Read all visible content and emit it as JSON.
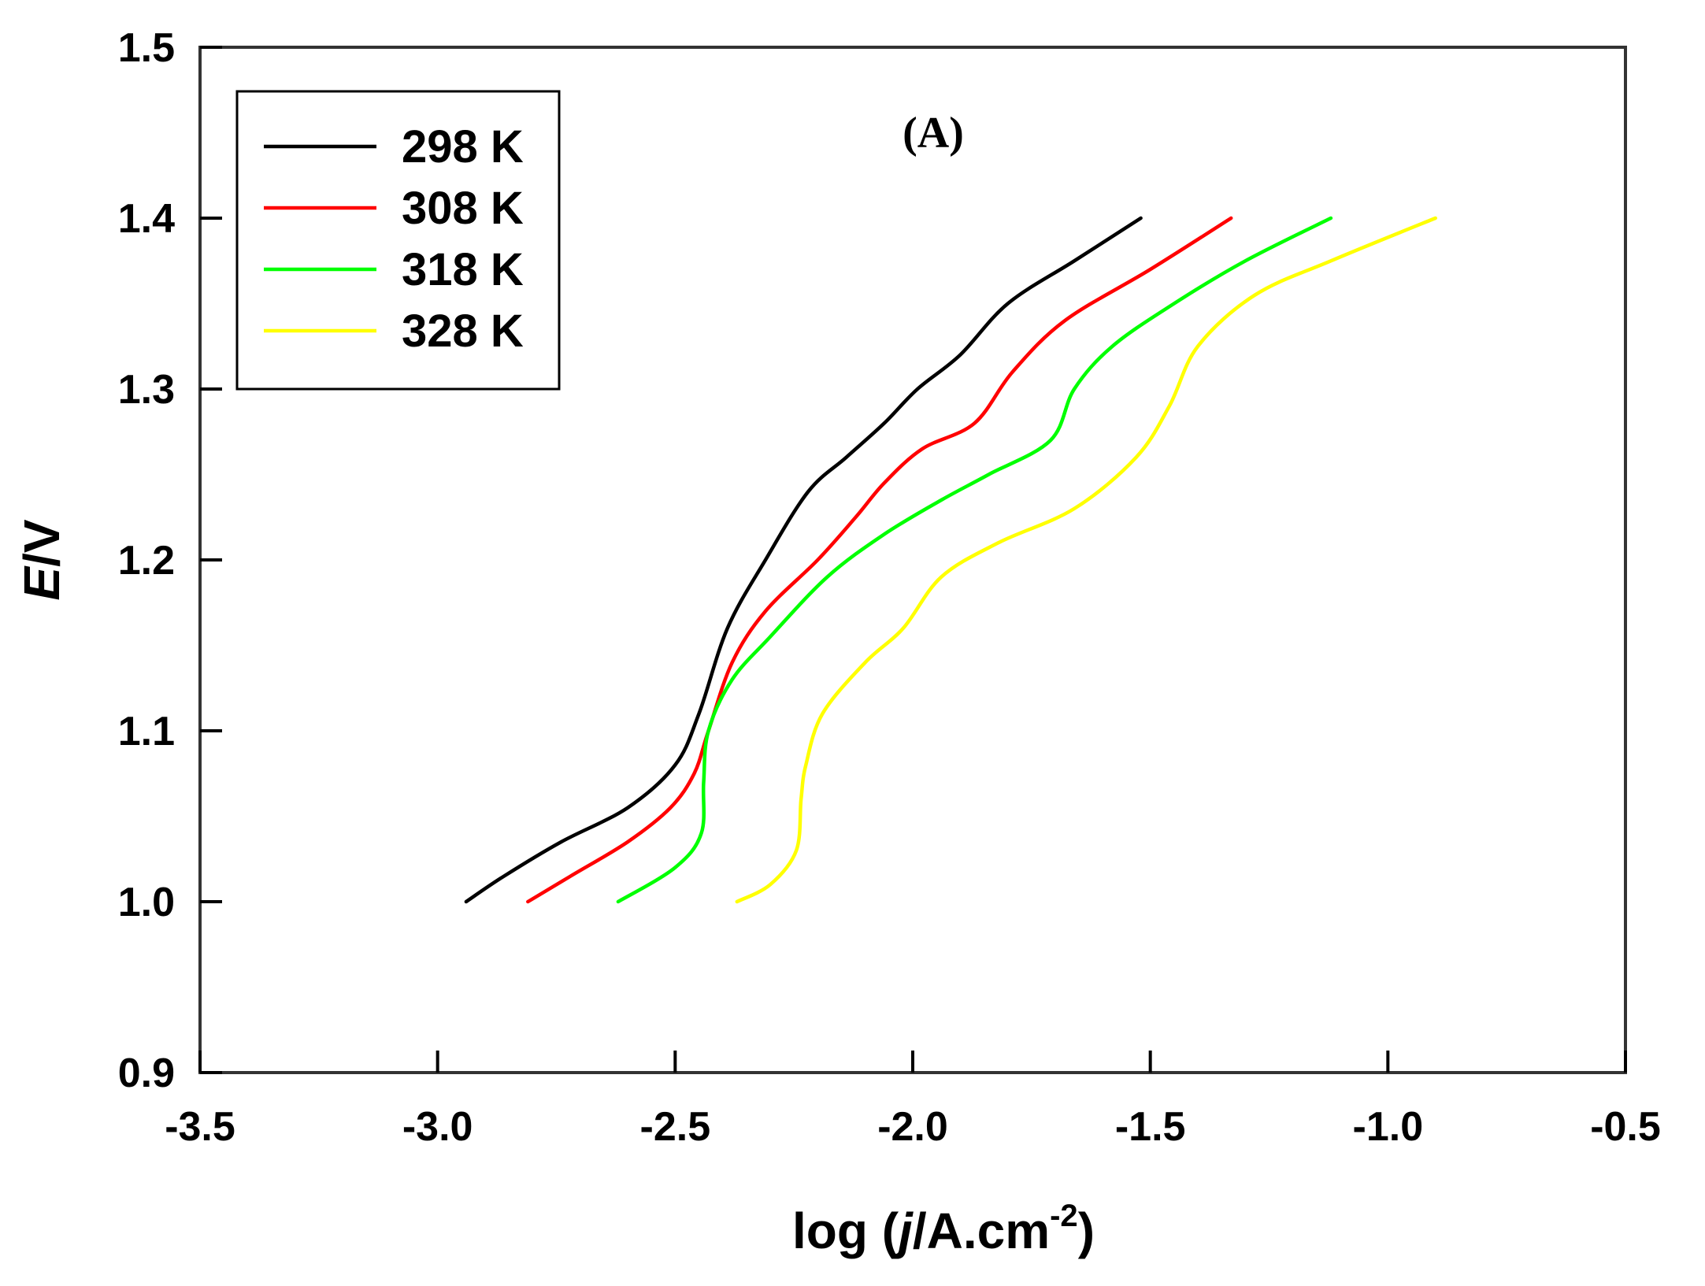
{
  "chart_data": {
    "type": "line",
    "title": "",
    "panel_label": "(A)",
    "xlabel": {
      "main": "log (",
      "italic": "j",
      "unit": "/A.cm",
      "sup": "-2",
      "close": ")"
    },
    "ylabel": {
      "italic": "E",
      "unit": "/V"
    },
    "xlim": [
      -3.5,
      -0.5
    ],
    "ylim": [
      0.9,
      1.5
    ],
    "xticks": [
      -3.5,
      -3.0,
      -2.5,
      -2.0,
      -1.5,
      -1.0,
      -0.5
    ],
    "xtick_labels": [
      "-3.5",
      "-3.0",
      "-2.5",
      "-2.0",
      "-1.5",
      "-1.0",
      "-0.5"
    ],
    "yticks": [
      0.9,
      1.0,
      1.1,
      1.2,
      1.3,
      1.4,
      1.5
    ],
    "ytick_labels": [
      "0.9",
      "1.0",
      "1.1",
      "1.2",
      "1.3",
      "1.4",
      "1.5"
    ],
    "grid": false,
    "legend_position": "top-left",
    "series": [
      {
        "name": "298 K",
        "color": "#000000",
        "points": [
          [
            -2.94,
            1.0
          ],
          [
            -2.86,
            1.015
          ],
          [
            -2.74,
            1.035
          ],
          [
            -2.6,
            1.055
          ],
          [
            -2.5,
            1.08
          ],
          [
            -2.45,
            1.11
          ],
          [
            -2.39,
            1.16
          ],
          [
            -2.31,
            1.2
          ],
          [
            -2.22,
            1.24
          ],
          [
            -2.14,
            1.26
          ],
          [
            -2.06,
            1.28
          ],
          [
            -1.99,
            1.3
          ],
          [
            -1.9,
            1.32
          ],
          [
            -1.8,
            1.35
          ],
          [
            -1.66,
            1.375
          ],
          [
            -1.52,
            1.4
          ]
        ]
      },
      {
        "name": "308 K",
        "color": "#ff0000",
        "points": [
          [
            -2.81,
            1.0
          ],
          [
            -2.72,
            1.015
          ],
          [
            -2.6,
            1.035
          ],
          [
            -2.51,
            1.055
          ],
          [
            -2.46,
            1.075
          ],
          [
            -2.43,
            1.1
          ],
          [
            -2.38,
            1.14
          ],
          [
            -2.31,
            1.17
          ],
          [
            -2.2,
            1.2
          ],
          [
            -2.12,
            1.225
          ],
          [
            -2.06,
            1.245
          ],
          [
            -1.98,
            1.265
          ],
          [
            -1.87,
            1.28
          ],
          [
            -1.79,
            1.31
          ],
          [
            -1.68,
            1.34
          ],
          [
            -1.5,
            1.37
          ],
          [
            -1.33,
            1.4
          ]
        ]
      },
      {
        "name": "318 K",
        "color": "#00ff00",
        "points": [
          [
            -2.62,
            1.0
          ],
          [
            -2.5,
            1.02
          ],
          [
            -2.445,
            1.04
          ],
          [
            -2.44,
            1.07
          ],
          [
            -2.43,
            1.1
          ],
          [
            -2.38,
            1.13
          ],
          [
            -2.3,
            1.155
          ],
          [
            -2.18,
            1.19
          ],
          [
            -2.06,
            1.215
          ],
          [
            -1.94,
            1.235
          ],
          [
            -1.84,
            1.25
          ],
          [
            -1.71,
            1.27
          ],
          [
            -1.66,
            1.3
          ],
          [
            -1.58,
            1.325
          ],
          [
            -1.45,
            1.35
          ],
          [
            -1.3,
            1.375
          ],
          [
            -1.12,
            1.4
          ]
        ]
      },
      {
        "name": "328 K",
        "color": "#ffff00",
        "points": [
          [
            -2.37,
            1.0
          ],
          [
            -2.3,
            1.01
          ],
          [
            -2.245,
            1.03
          ],
          [
            -2.235,
            1.06
          ],
          [
            -2.225,
            1.08
          ],
          [
            -2.19,
            1.11
          ],
          [
            -2.1,
            1.14
          ],
          [
            -2.02,
            1.16
          ],
          [
            -1.94,
            1.19
          ],
          [
            -1.82,
            1.21
          ],
          [
            -1.66,
            1.23
          ],
          [
            -1.53,
            1.26
          ],
          [
            -1.46,
            1.29
          ],
          [
            -1.4,
            1.325
          ],
          [
            -1.28,
            1.355
          ],
          [
            -1.12,
            1.375
          ],
          [
            -0.9,
            1.4
          ]
        ]
      }
    ]
  }
}
